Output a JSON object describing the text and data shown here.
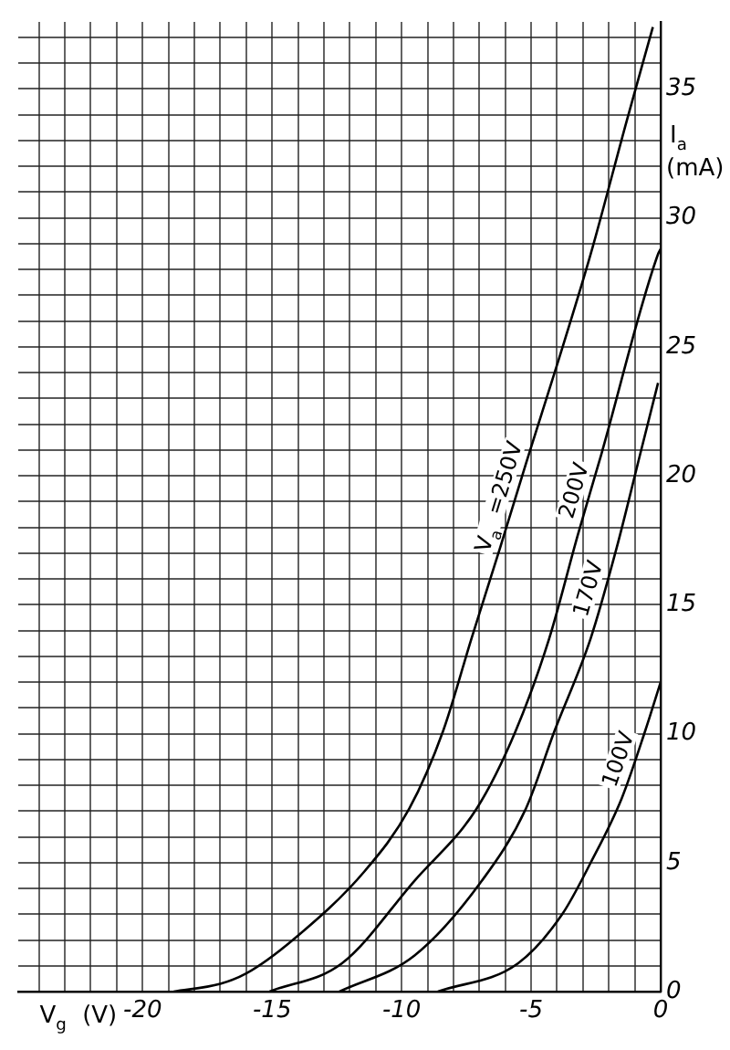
{
  "chart_data": {
    "type": "line",
    "xlabel": "V$_{g}$ (V)",
    "ylabel": "I$_{a}$ (mA)",
    "xlim": [
      -24.8,
      0
    ],
    "ylim": [
      0,
      37.6
    ],
    "xticks": [
      {
        "value": -24,
        "label": null
      },
      {
        "value": -23,
        "label": null
      },
      {
        "value": -22,
        "label": null
      },
      {
        "value": -21,
        "label": null
      },
      -20,
      {
        "value": -19,
        "label": null
      },
      {
        "value": -18,
        "label": null
      },
      {
        "value": -17,
        "label": null
      },
      {
        "value": -16,
        "label": null
      },
      -15,
      {
        "value": -14,
        "label": null
      },
      {
        "value": -13,
        "label": null
      },
      {
        "value": -12,
        "label": null
      },
      {
        "value": -11,
        "label": null
      },
      -10,
      {
        "value": -9,
        "label": null
      },
      {
        "value": -8,
        "label": null
      },
      {
        "value": -7,
        "label": null
      },
      {
        "value": -6,
        "label": null
      },
      -5,
      {
        "value": -4,
        "label": null
      },
      {
        "value": -3,
        "label": null
      },
      {
        "value": -2,
        "label": null
      },
      {
        "value": -1,
        "label": null
      },
      0
    ],
    "yticks": [
      0,
      {
        "value": 1,
        "label": null
      },
      {
        "value": 2,
        "label": null
      },
      {
        "value": 3,
        "label": null
      },
      {
        "value": 4,
        "label": null
      },
      5,
      {
        "value": 6,
        "label": null
      },
      {
        "value": 7,
        "label": null
      },
      {
        "value": 8,
        "label": null
      },
      {
        "value": 9,
        "label": null
      },
      10,
      {
        "value": 11,
        "label": null
      },
      {
        "value": 12,
        "label": null
      },
      {
        "value": 13,
        "label": null
      },
      {
        "value": 14,
        "label": null
      },
      15,
      {
        "value": 16,
        "label": null
      },
      {
        "value": 17,
        "label": null
      },
      {
        "value": 18,
        "label": null
      },
      {
        "value": 19,
        "label": null
      },
      20,
      {
        "value": 21,
        "label": null
      },
      {
        "value": 22,
        "label": null
      },
      {
        "value": 23,
        "label": null
      },
      {
        "value": 24,
        "label": null
      },
      25,
      {
        "value": 26,
        "label": null
      },
      {
        "value": 27,
        "label": null
      },
      {
        "value": 28,
        "label": null
      },
      {
        "value": 29,
        "label": null
      },
      30,
      {
        "value": 31,
        "label": null
      },
      {
        "value": 32,
        "label": null
      },
      {
        "value": 33,
        "label": null
      },
      {
        "value": 34,
        "label": null
      },
      35,
      {
        "value": 36,
        "label": null
      },
      {
        "value": 37,
        "label": null
      }
    ],
    "grid": true,
    "legend": false,
    "marker": "none",
    "line_style": "solid",
    "series": [
      {
        "name": "V$_{a}$ =250V",
        "color": "#000000",
        "x": [
          -18.8,
          -17,
          -16,
          -14.2,
          -11.4,
          -9.7,
          -8.4,
          -7.3,
          -6.2,
          -5.1,
          -4.0,
          -2.7,
          -1.3,
          -0.3
        ],
        "values": [
          0,
          0.3,
          0.7,
          2.0,
          4.7,
          7.1,
          10.1,
          13.7,
          17.2,
          20.8,
          24.3,
          28.6,
          33.8,
          37.4
        ]
      },
      {
        "name": "200V",
        "color": "#000000",
        "x": [
          -15.1,
          -12.3,
          -9.5,
          -7.1,
          -5.6,
          -4.3,
          -3.2,
          -2.3,
          -0.1,
          0
        ],
        "values": [
          0,
          1.1,
          4.3,
          7.1,
          10.1,
          13.7,
          17.7,
          20.8,
          28.6,
          28.8
        ]
      },
      {
        "name": "170V",
        "color": "#000000",
        "x": [
          -12.4,
          -9.5,
          -6.9,
          -5.2,
          -4.1,
          -2.7,
          -1.7,
          -0.8,
          -0.1
        ],
        "values": [
          0,
          1.4,
          4.3,
          7.1,
          10.1,
          13.7,
          17.2,
          20.8,
          23.6
        ]
      },
      {
        "name": "100V",
        "color": "#000000",
        "x": [
          -8.6,
          -5.5,
          -3.8,
          -2.7,
          -1.5,
          -0.6,
          0
        ],
        "values": [
          0,
          1.1,
          3.0,
          5.0,
          7.5,
          10.1,
          12
        ]
      }
    ]
  }
}
